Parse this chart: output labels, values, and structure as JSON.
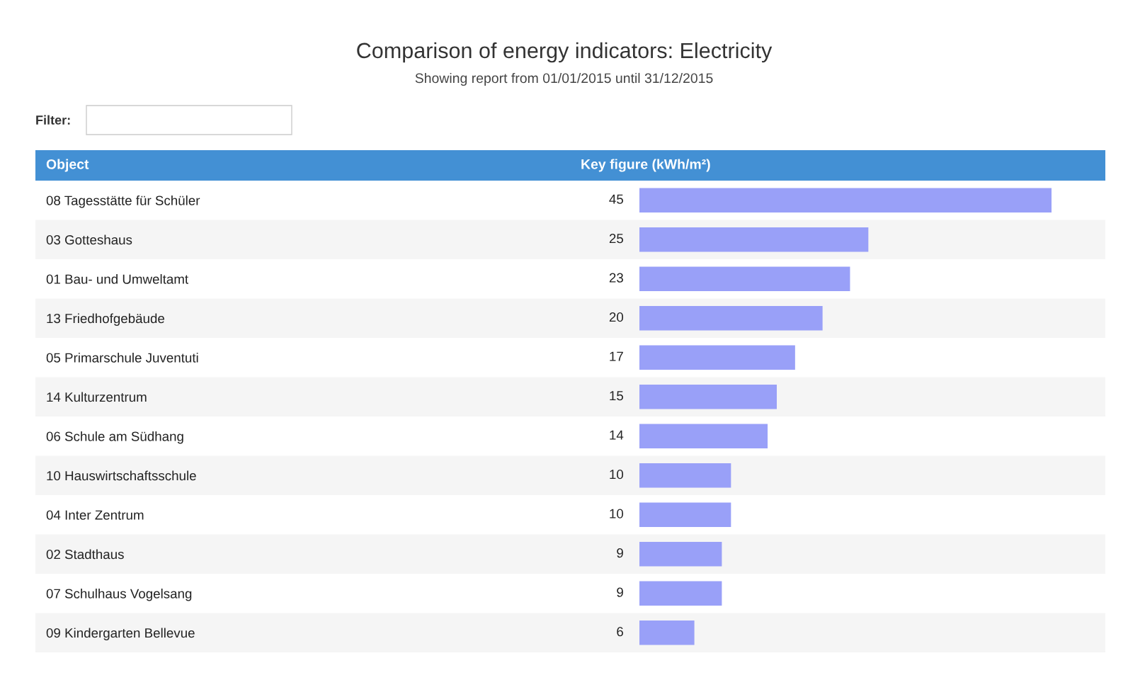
{
  "chart_data": {
    "type": "bar",
    "orientation": "horizontal",
    "title": "Comparison of energy indicators: Electricity",
    "subtitle": "Showing report from 01/01/2015 until 31/12/2015",
    "ylabel": "Object",
    "xlabel": "Key figure (kWh/m²)",
    "annotations": [
      "Filter:"
    ],
    "categories": [
      "08 Tagesstätte für Schüler",
      "03 Gotteshaus",
      "01 Bau- und Umweltamt",
      "13 Friedhofgebäude",
      "05 Primarschule Juventuti",
      "14 Kulturzentrum",
      "06 Schule am Südhang",
      "10 Hauswirtschaftsschule",
      "04 Inter Zentrum",
      "02 Stadthaus",
      "07 Schulhaus Vogelsang",
      "09 Kindergarten Bellevue"
    ],
    "values": [
      45,
      25,
      23,
      20,
      17,
      15,
      14,
      10,
      10,
      9,
      9,
      6
    ],
    "color": "#99a0f8",
    "data_labels": true,
    "tick_labels": "y",
    "grid": false,
    "legend": false
  }
}
